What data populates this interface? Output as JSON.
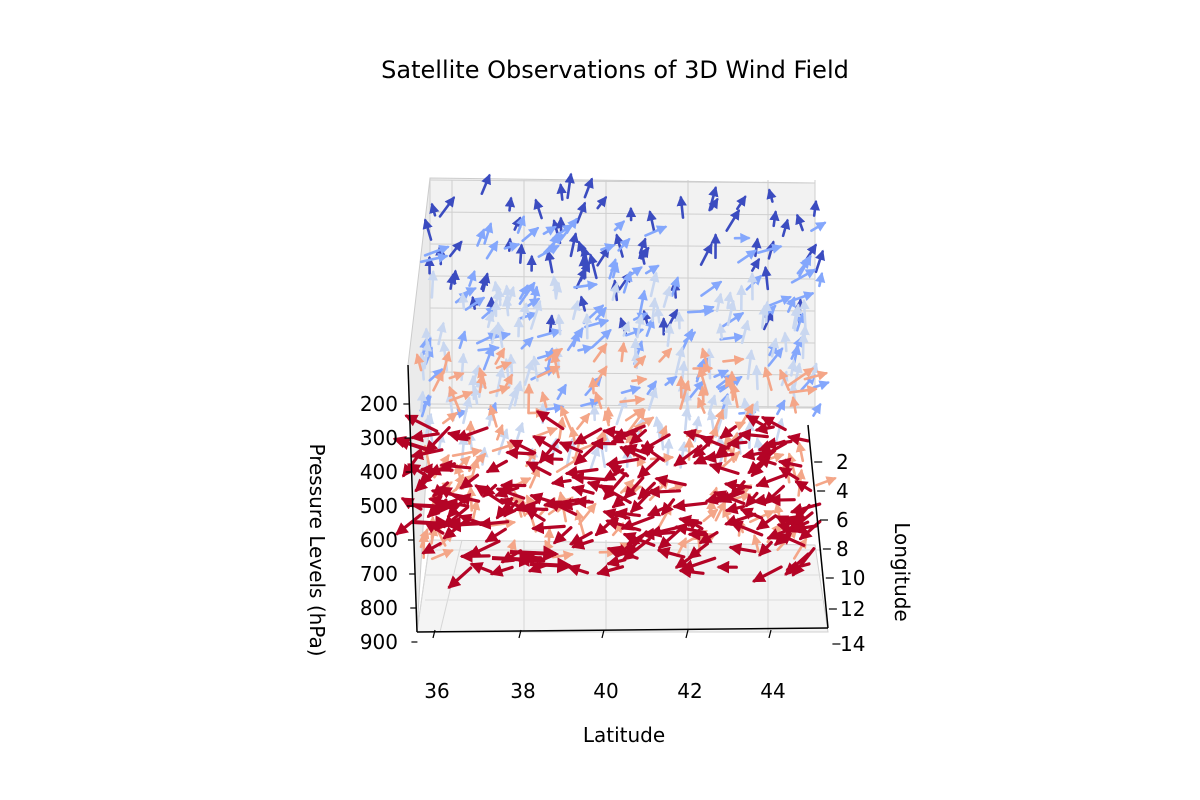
{
  "chart_data": {
    "type": "quiver3d",
    "title": "Satellite Observations of 3D Wind Field",
    "xlabel": "Latitude",
    "ylabel": "Longitude",
    "zlabel": "Pressure Levels (hPa)",
    "x_ticks": [
      "36",
      "38",
      "40",
      "42",
      "44"
    ],
    "y_ticks": [
      "2",
      "4",
      "6",
      "8",
      "10",
      "12",
      "14"
    ],
    "z_ticks": [
      "200",
      "300",
      "400",
      "500",
      "600",
      "700",
      "800",
      "900"
    ],
    "xlim": [
      35.5,
      45
    ],
    "ylim": [
      0,
      14
    ],
    "zlim": [
      900,
      100
    ],
    "grid": true,
    "colormap": [
      "#b40426",
      "#f4a688",
      "#c9d7f0",
      "#84a7fc",
      "#3b4cc0"
    ],
    "levels": [
      {
        "pressure": 850,
        "color": "#b40426"
      },
      {
        "pressure": 650,
        "color": "#f4a688"
      },
      {
        "pressure": 450,
        "color": "#c9d7f0"
      },
      {
        "pressure": 300,
        "color": "#84a7fc"
      },
      {
        "pressure": 200,
        "color": "#3b4cc0"
      }
    ]
  }
}
